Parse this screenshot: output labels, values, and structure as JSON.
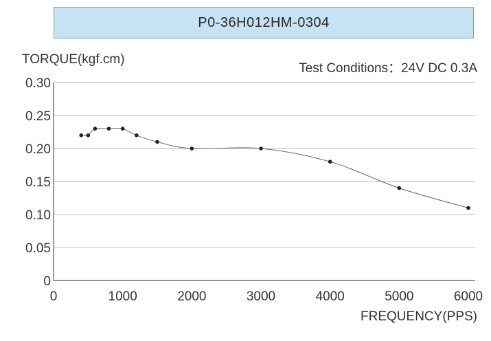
{
  "chart_data": {
    "type": "line",
    "title": "P0-36H012HM-0304",
    "ylabel": "TORQUE(kgf.cm)",
    "xlabel": "FREQUENCY(PPS)",
    "annotation": "Test Conditions：24V DC   0.3A",
    "xlim": [
      0,
      6000
    ],
    "ylim": [
      0,
      0.3
    ],
    "x_ticks": [
      0,
      1000,
      2000,
      3000,
      4000,
      5000,
      6000
    ],
    "x_tick_labels": [
      "0",
      "1000",
      "2000",
      "3000",
      "4000",
      "5000",
      "6000"
    ],
    "y_ticks": [
      0,
      0.05,
      0.1,
      0.15,
      0.2,
      0.25,
      0.3
    ],
    "y_tick_labels": [
      "0",
      "0.05",
      "0.10",
      "0.15",
      "0.20",
      "0.25",
      "0.30"
    ],
    "grid": "horizontal",
    "series": [
      {
        "x": [
          400,
          500,
          600,
          800,
          1000,
          1200,
          1500,
          2000,
          3000,
          4000,
          5000,
          6000
        ],
        "y": [
          0.22,
          0.22,
          0.23,
          0.23,
          0.23,
          0.22,
          0.21,
          0.2,
          0.2,
          0.18,
          0.14,
          0.11
        ]
      }
    ],
    "colors": {
      "line": "#666666",
      "marker": "#222222",
      "grid": "#bbbbbb",
      "title_bg": "#c5e3f5"
    }
  }
}
